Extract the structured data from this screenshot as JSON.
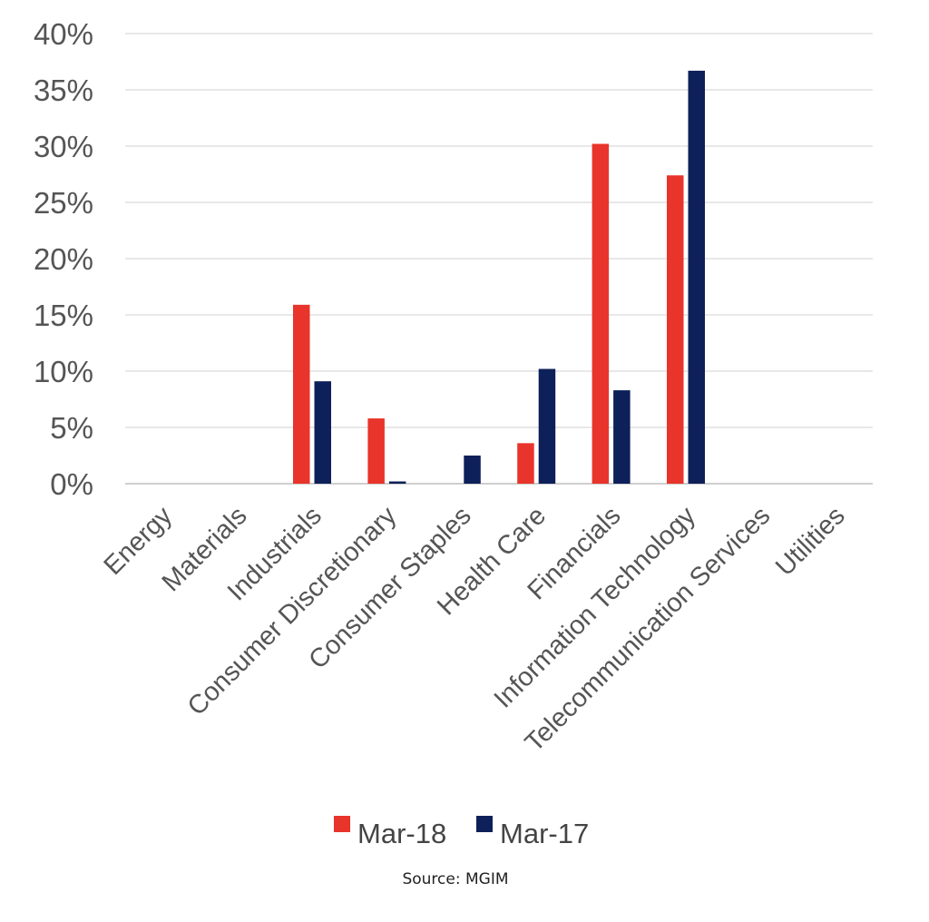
{
  "chart_data": {
    "type": "bar",
    "title": "",
    "xlabel": "",
    "ylabel": "",
    "categories": [
      "Energy",
      "Materials",
      "Industrials",
      "Consumer Discretionary",
      "Consumer Staples",
      "Health Care",
      "Financials",
      "Information Technology",
      "Telecommunication Services",
      "Utilities"
    ],
    "series": [
      {
        "name": "Mar-18",
        "color": "#e8342a",
        "values": [
          0,
          0,
          15.9,
          5.8,
          0,
          3.6,
          30.2,
          27.4,
          0,
          0
        ]
      },
      {
        "name": "Mar-17",
        "color": "#0d2059",
        "values": [
          0,
          0,
          9.1,
          0.2,
          2.5,
          10.2,
          8.3,
          36.7,
          0,
          0
        ]
      }
    ],
    "ylim": [
      0,
      40
    ],
    "yticks": [
      0,
      5,
      10,
      15,
      20,
      25,
      30,
      35,
      40
    ],
    "ytick_labels": [
      "0%",
      "5%",
      "10%",
      "15%",
      "20%",
      "25%",
      "30%",
      "35%",
      "40%"
    ],
    "grid": true,
    "legend_position": "bottom",
    "source": "Source: MGIM"
  }
}
